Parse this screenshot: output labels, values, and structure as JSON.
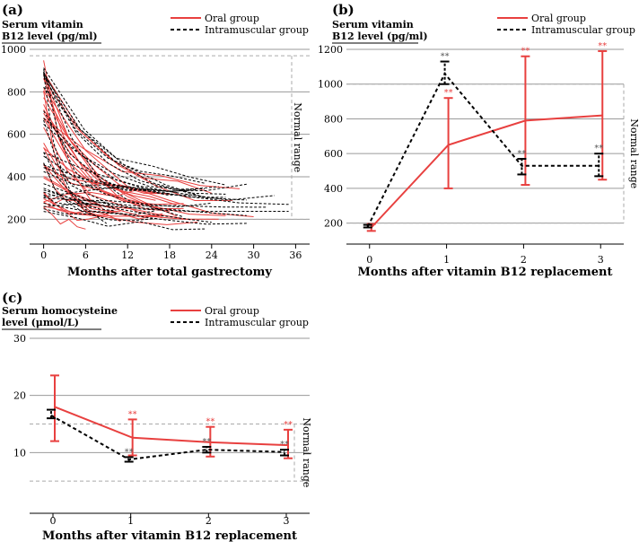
{
  "chart_data": [
    {
      "id": "a",
      "type": "line",
      "panel_label": "(a)",
      "ylabel_line1": "Serum vitamin",
      "ylabel_line2": "B12 level (pg/ml)",
      "xlabel": "Months after total gastrectomy",
      "xticks": [
        0,
        6,
        12,
        18,
        24,
        30,
        36
      ],
      "yticks": [
        200,
        400,
        600,
        800,
        1000
      ],
      "xlim": [
        -2,
        38
      ],
      "ylim": [
        100,
        1000
      ],
      "normal_range": [
        200,
        970
      ],
      "normal_range_label": "Normal range",
      "legend": [
        {
          "name": "Oral group",
          "color": "#e8403f",
          "dash": "solid"
        },
        {
          "name": "Intramuscular group",
          "color": "#000000",
          "dash": "dashed"
        }
      ],
      "individual_series_count": {
        "oral": 30,
        "intramuscular": 30
      }
    },
    {
      "id": "b",
      "type": "line",
      "panel_label": "(b)",
      "ylabel_line1": "Serum vitamin",
      "ylabel_line2": "B12 level (pg/ml)",
      "xlabel": "Months after vitamin B12 replacement",
      "xticks": [
        0,
        1,
        2,
        3
      ],
      "yticks": [
        200,
        400,
        600,
        800,
        1000,
        1200
      ],
      "xlim": [
        -0.3,
        3.3
      ],
      "ylim": [
        100,
        1200
      ],
      "normal_range": [
        200,
        1000
      ],
      "normal_range_label": "Normal range",
      "legend": [
        {
          "name": "Oral group",
          "color": "#e8403f",
          "dash": "solid"
        },
        {
          "name": "Intramuscular group",
          "color": "#000000",
          "dash": "dashed"
        }
      ],
      "series": [
        {
          "name": "Oral group",
          "color": "#e8403f",
          "dash": "solid",
          "x": [
            0,
            1,
            2,
            3
          ],
          "y": [
            175,
            650,
            790,
            820
          ],
          "err_low": [
            155,
            400,
            420,
            450
          ],
          "err_high": [
            195,
            920,
            1160,
            1190
          ],
          "significance": [
            "",
            "**",
            "**",
            "**"
          ]
        },
        {
          "name": "Intramuscular group",
          "color": "#000000",
          "dash": "dashed",
          "x": [
            0,
            1,
            2,
            3
          ],
          "y": [
            180,
            1060,
            530,
            530
          ],
          "err_low": [
            175,
            1000,
            480,
            470
          ],
          "err_high": [
            190,
            1130,
            570,
            600
          ],
          "significance": [
            "",
            "**",
            "**",
            "**"
          ]
        }
      ],
      "significance_label": "**"
    },
    {
      "id": "c",
      "type": "line",
      "panel_label": "(c)",
      "ylabel_line1": "Serum homocysteine",
      "ylabel_line2": "level (μmol/L)",
      "xlabel": "Months after vitamin B12 replacement",
      "xticks": [
        0,
        1,
        2,
        3
      ],
      "yticks": [
        10,
        20,
        30
      ],
      "xlim": [
        -0.3,
        3.3
      ],
      "ylim": [
        0,
        30
      ],
      "normal_range": [
        5,
        15
      ],
      "normal_range_label": "Normal range",
      "legend": [
        {
          "name": "Oral group",
          "color": "#e8403f",
          "dash": "solid"
        },
        {
          "name": "Intramuscular group",
          "color": "#000000",
          "dash": "dashed"
        }
      ],
      "series": [
        {
          "name": "Oral group",
          "color": "#e8403f",
          "dash": "solid",
          "x": [
            0,
            1,
            2,
            3
          ],
          "y": [
            18,
            12.6,
            11.8,
            11.3
          ],
          "err_low": [
            12,
            9.5,
            9.3,
            9
          ],
          "err_high": [
            23.5,
            15.8,
            14.5,
            14
          ],
          "significance": [
            "",
            "**",
            "**",
            "**"
          ]
        },
        {
          "name": "Intramuscular group",
          "color": "#000000",
          "dash": "dashed",
          "x": [
            0,
            1,
            2,
            3
          ],
          "y": [
            16.5,
            8.8,
            10.5,
            10.1
          ],
          "err_low": [
            16,
            8.4,
            10,
            9.5
          ],
          "err_high": [
            17.5,
            9.2,
            11,
            10.5
          ],
          "significance": [
            "",
            "**",
            "**",
            "**"
          ]
        }
      ],
      "significance_label": "**"
    }
  ]
}
